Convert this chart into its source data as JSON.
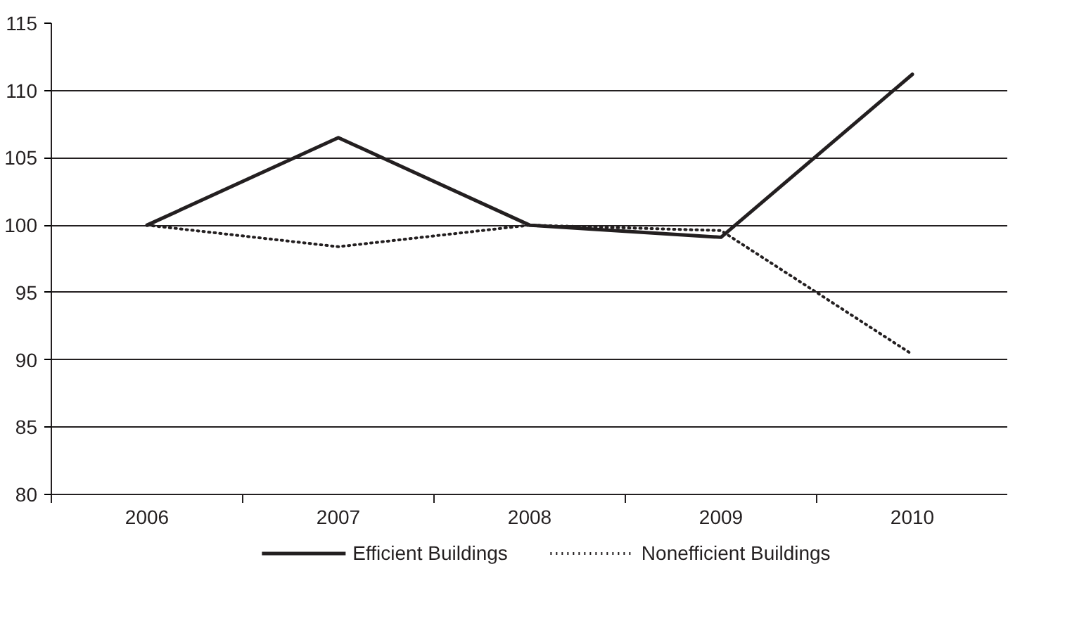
{
  "chart_data": {
    "type": "line",
    "categories": [
      "2006",
      "2007",
      "2008",
      "2009",
      "2010"
    ],
    "series": [
      {
        "name": "Efficient Buildings",
        "color": "#231f20",
        "line_style": "solid",
        "values": [
          100,
          106.5,
          100,
          99.1,
          111.2
        ]
      },
      {
        "name": "Nonefficient Buildings",
        "color": "#231f20",
        "line_style": "dotted",
        "values": [
          100,
          98.4,
          100,
          99.6,
          90.4
        ]
      }
    ],
    "ylim": [
      80,
      115
    ],
    "yticks": [
      80,
      85,
      90,
      95,
      100,
      105,
      110,
      115
    ],
    "grid": "y",
    "legend": "bottom",
    "marker": "none"
  }
}
